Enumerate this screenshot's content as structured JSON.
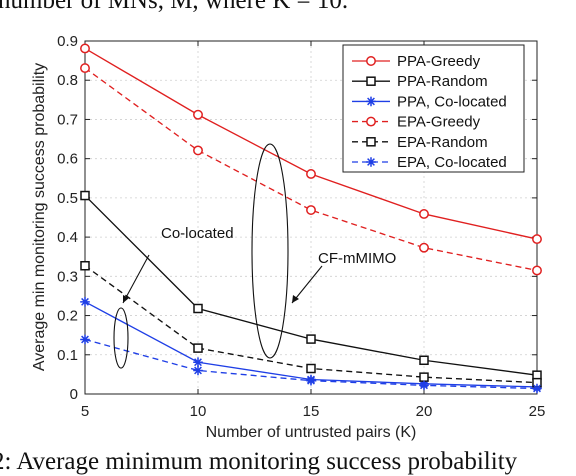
{
  "text_fragments": {
    "top_line": "number of MNs, M, where K = 10.",
    "caption_line": "2: Average minimum monitoring success probability"
  },
  "chart_data": {
    "type": "line",
    "title": "",
    "xlabel": "Number of untrusted pairs (K)",
    "ylabel": "Average min monitoring success probability",
    "x": [
      5,
      10,
      15,
      20,
      25
    ],
    "xlim": [
      5,
      25
    ],
    "ylim": [
      0,
      0.9
    ],
    "xticks": [
      5,
      10,
      15,
      20,
      25
    ],
    "yticks": [
      0,
      0.1,
      0.2,
      0.3,
      0.4,
      0.5,
      0.6,
      0.7,
      0.8,
      0.9
    ],
    "grid": true,
    "legend_position": "top-right",
    "series": [
      {
        "name": "PPA-Greedy",
        "color": "#e02020",
        "dash": "solid",
        "marker": "circle",
        "values": [
          0.881,
          0.712,
          0.561,
          0.459,
          0.395
        ]
      },
      {
        "name": "PPA-Random",
        "color": "#111111",
        "dash": "solid",
        "marker": "square",
        "values": [
          0.506,
          0.218,
          0.14,
          0.086,
          0.048
        ]
      },
      {
        "name": "PPA, Co-located",
        "color": "#1f3fe6",
        "dash": "solid",
        "marker": "star",
        "values": [
          0.235,
          0.081,
          0.037,
          0.026,
          0.018
        ]
      },
      {
        "name": "EPA-Greedy",
        "color": "#e02020",
        "dash": "dashed",
        "marker": "circle",
        "values": [
          0.831,
          0.621,
          0.469,
          0.373,
          0.315
        ]
      },
      {
        "name": "EPA-Random",
        "color": "#111111",
        "dash": "dashed",
        "marker": "square",
        "values": [
          0.327,
          0.117,
          0.065,
          0.043,
          0.029
        ]
      },
      {
        "name": "EPA, Co-located",
        "color": "#1f3fe6",
        "dash": "dashed",
        "marker": "star",
        "values": [
          0.139,
          0.06,
          0.034,
          0.022,
          0.014
        ]
      }
    ],
    "annotations": [
      {
        "text": "Co-located"
      },
      {
        "text": "CF-mMIMO"
      }
    ]
  }
}
